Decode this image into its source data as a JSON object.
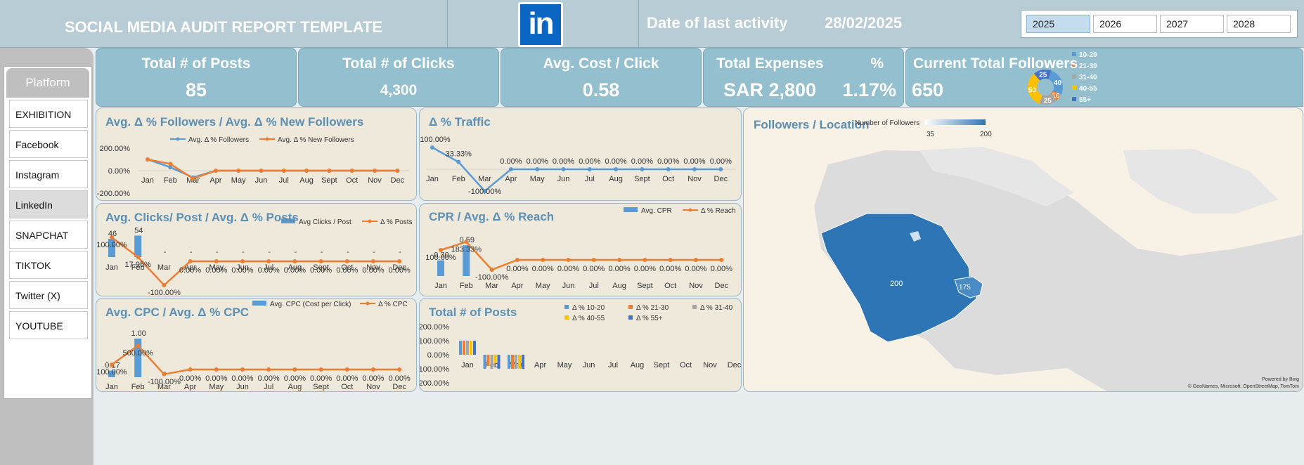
{
  "header": {
    "title": "SOCIAL MEDIA AUDIT REPORT TEMPLATE",
    "logo_text": "in",
    "date_label": "Date of last activity",
    "date_value": "28/02/2025",
    "years": [
      "2025",
      "2026",
      "2027",
      "2028"
    ],
    "active_year": "2025"
  },
  "sidebar": {
    "header": "Platform",
    "items": [
      "EXHIBITION",
      "Facebook",
      "Instagram",
      "LinkedIn",
      "SNAPCHAT",
      "TIKTOK",
      "Twitter (X)",
      "YOUTUBE"
    ],
    "active": "LinkedIn"
  },
  "kpis": {
    "posts_label": "Total # of Posts",
    "posts_value": "85",
    "clicks_label": "Total # of Clicks",
    "clicks_value": "4,300",
    "cpc_label": "Avg. Cost / Click",
    "cpc_value": "0.58",
    "expenses_label": "Total Expenses",
    "expenses_value": "SAR 2,800",
    "pct_label": "%",
    "pct_value": "1.17%",
    "followers_label": "Current Total Followers",
    "followers_value": "650"
  },
  "colors": {
    "blue": "#5b9bd5",
    "orange": "#ed7d31",
    "gray": "#a5a5a5",
    "yellow": "#ffc000",
    "navy": "#4472c4",
    "title": "#5b8fb5"
  },
  "months": [
    "Jan",
    "Feb",
    "Mar",
    "Apr",
    "May",
    "Jun",
    "Jul",
    "Aug",
    "Sept",
    "Oct",
    "Nov",
    "Dec"
  ],
  "chart_data": [
    {
      "id": "followers",
      "type": "line",
      "title": "Avg. Δ % Followers / Avg. Δ % New Followers",
      "yticks": [
        "200.00%",
        "0.00%",
        "-200.00%"
      ],
      "ylim": [
        -200,
        200
      ],
      "series": [
        {
          "name": "Avg. Δ % Followers",
          "color": "#5b9bd5",
          "values": [
            100,
            30,
            -60,
            0,
            0,
            0,
            0,
            0,
            0,
            0,
            0,
            0
          ]
        },
        {
          "name": "Avg. Δ % New Followers",
          "color": "#ed7d31",
          "values": [
            100,
            60,
            -70,
            0,
            0,
            0,
            0,
            0,
            0,
            0,
            0,
            0
          ]
        }
      ]
    },
    {
      "id": "traffic",
      "type": "line",
      "title": "Δ % Traffic",
      "ylim": [
        -100,
        100
      ],
      "series": [
        {
          "name": "Δ % Traffic",
          "color": "#5b9bd5",
          "values": [
            100,
            33.33,
            -100,
            0,
            0,
            0,
            0,
            0,
            0,
            0,
            0,
            0
          ],
          "labels": [
            "100.00%",
            "33.33%",
            "-100.00%",
            "0.00%",
            "0.00%",
            "0.00%",
            "0.00%",
            "0.00%",
            "0.00%",
            "0.00%",
            "0.00%",
            "0.00%"
          ]
        }
      ]
    },
    {
      "id": "clicks",
      "type": "bar-line",
      "title": "Avg. Clicks/ Post / Avg. Δ % Posts",
      "bar_name": "Avg Clicks / Post",
      "line_name": "Δ % Posts",
      "bars": [
        46,
        54,
        0,
        0,
        0,
        0,
        0,
        0,
        0,
        0,
        0,
        0
      ],
      "bar_labels": [
        "46",
        "54",
        "-",
        "-",
        "-",
        "-",
        "-",
        "-",
        "-",
        "-",
        "-",
        "-"
      ],
      "bar_max": 60,
      "line": [
        100,
        17.95,
        -100,
        0,
        0,
        0,
        0,
        0,
        0,
        0,
        0,
        0
      ],
      "line_labels": [
        "100.00%",
        "17.95%",
        "-100.00%",
        "0.00%",
        "0.00%",
        "0.00%",
        "0.00%",
        "0.00%",
        "0.00%",
        "0.00%",
        "0.00%",
        "0.00%"
      ]
    },
    {
      "id": "cpr",
      "type": "bar-line",
      "title": "CPR /  Avg. Δ % Reach",
      "bar_name": "Avg. CPR",
      "line_name": "Δ % Reach",
      "bars": [
        0.3,
        0.59,
        0,
        0,
        0,
        0,
        0,
        0,
        0,
        0,
        0,
        0
      ],
      "bar_labels": [
        "0.30",
        "0.59",
        "-",
        "",
        "",
        "",
        "",
        "",
        "",
        "",
        "",
        ""
      ],
      "bar_max": 0.7,
      "line": [
        100,
        183.33,
        -100,
        0,
        0,
        0,
        0,
        0,
        0,
        0,
        0,
        0
      ],
      "line_labels": [
        "100.00%",
        "183.33%",
        "-100.00%",
        "0.00%",
        "0.00%",
        "0.00%",
        "0.00%",
        "0.00%",
        "0.00%",
        "0.00%",
        "0.00%",
        "0.00%"
      ]
    },
    {
      "id": "cpc",
      "type": "bar-line",
      "title": "Avg. CPC / Avg. Δ % CPC",
      "bar_name": "Avg. CPC (Cost per Click)",
      "line_name": "Δ % CPC",
      "bars": [
        0.17,
        1.0,
        0,
        0,
        0,
        0,
        0,
        0,
        0,
        0,
        0,
        0
      ],
      "bar_labels": [
        "0.17",
        "1.00",
        "-",
        "",
        "",
        "",
        "",
        "",
        "",
        "",
        "",
        ""
      ],
      "bar_max": 1.2,
      "line": [
        100,
        500,
        -100,
        0,
        0,
        0,
        0,
        0,
        0,
        0,
        0,
        0
      ],
      "line_labels": [
        "100.00%",
        "500.00%",
        "-100.00%",
        "0.00%",
        "0.00%",
        "0.00%",
        "0.00%",
        "0.00%",
        "0.00%",
        "0.00%",
        "0.00%",
        "0.00%"
      ]
    },
    {
      "id": "posts",
      "type": "bar",
      "title": "Total # of Posts",
      "yticks": [
        "200.00%",
        "100.00%",
        "0.00%",
        "-100.00%",
        "-200.00%"
      ],
      "ylim": [
        -200,
        200
      ],
      "series": [
        {
          "name": "Δ % 10-20",
          "color": "#5b9bd5",
          "values": [
            100,
            -100,
            -100,
            0,
            0,
            0,
            0,
            0,
            0,
            0,
            0,
            0
          ]
        },
        {
          "name": "Δ % 21-30",
          "color": "#ed7d31",
          "values": [
            100,
            -80,
            -100,
            0,
            0,
            0,
            0,
            0,
            0,
            0,
            0,
            0
          ]
        },
        {
          "name": "Δ % 31-40",
          "color": "#a5a5a5",
          "values": [
            100,
            -100,
            -100,
            0,
            0,
            0,
            0,
            0,
            0,
            0,
            0,
            0
          ]
        },
        {
          "name": "Δ % 40-55",
          "color": "#ffc000",
          "values": [
            100,
            -60,
            -100,
            0,
            0,
            0,
            0,
            0,
            0,
            0,
            0,
            0
          ]
        },
        {
          "name": "Δ % 55+",
          "color": "#4472c4",
          "values": [
            100,
            -100,
            -100,
            0,
            0,
            0,
            0,
            0,
            0,
            0,
            0,
            0
          ]
        }
      ]
    },
    {
      "id": "age-donut",
      "type": "pie",
      "categories": [
        "10-20",
        "21-30",
        "31-40",
        "40-55",
        "55+"
      ],
      "values": [
        40,
        10,
        25,
        50,
        25
      ],
      "colors": [
        "#5b9bd5",
        "#ed7d31",
        "#a5a5a5",
        "#ffc000",
        "#4472c4"
      ]
    },
    {
      "id": "location",
      "type": "map",
      "title": "Followers / Location",
      "legend_title": "Number of Followers",
      "legend_min": "35",
      "legend_max": "200",
      "regions": [
        {
          "label": "200",
          "value": 200
        },
        {
          "label": "175",
          "value": 175
        }
      ],
      "credit": "Powered by Bing",
      "attribution": "© GeoNames, Microsoft, OpenStreetMap, TomTom"
    }
  ]
}
